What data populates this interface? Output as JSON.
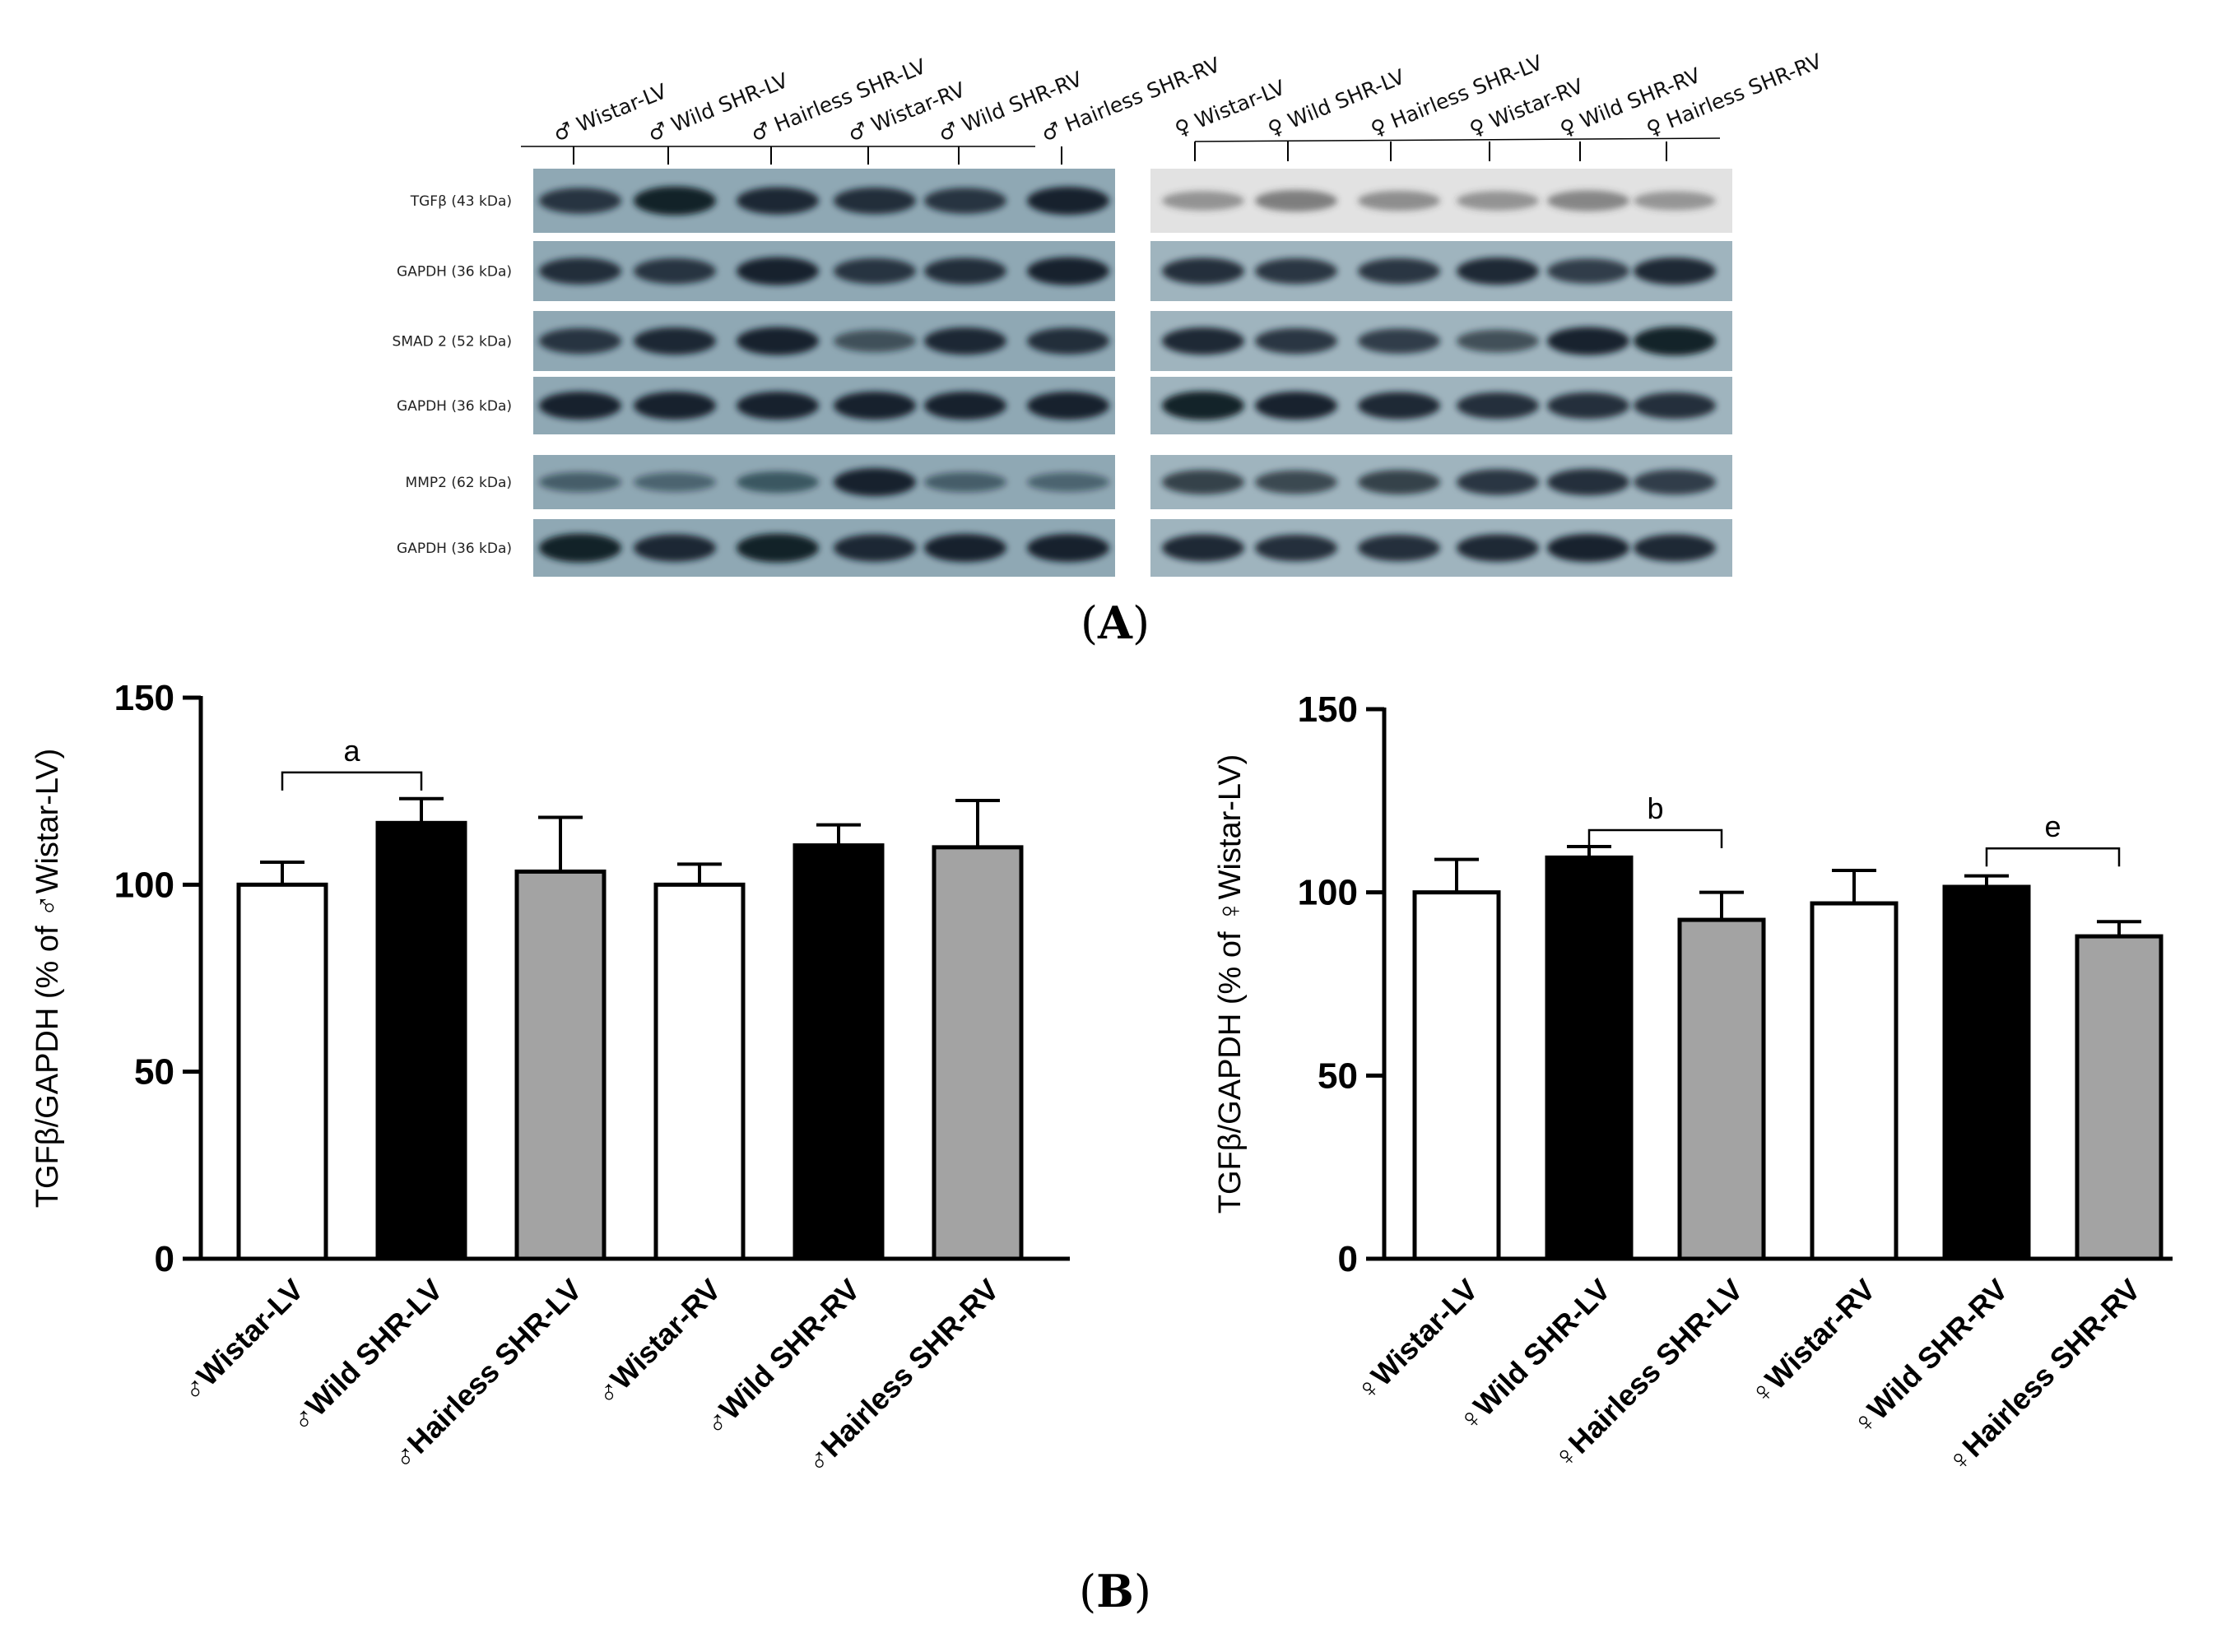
{
  "panel_a": {
    "panel_label": "A",
    "male_lanes": [
      "♂ Wistar-LV",
      "♂ Wild SHR-LV",
      "♂ Hairless SHR-LV",
      "♂ Wistar-RV",
      "♂ Wild SHR-RV",
      "♂ Hairless SHR-RV"
    ],
    "female_lanes": [
      "♀ Wistar-LV",
      "♀ Wild SHR-LV",
      "♀ Hairless SHR-LV",
      "♀ Wistar-RV",
      "♀ Wild SHR-RV",
      "♀ Hairless SHR-RV"
    ],
    "blots": [
      {
        "label": "TGFβ (43 kDa)",
        "male_intensity": [
          0.75,
          0.95,
          0.85,
          0.8,
          0.75,
          0.9
        ],
        "female_intensity": [
          0.3,
          0.45,
          0.35,
          0.3,
          0.4,
          0.28
        ]
      },
      {
        "label": "GAPDH (36 kDa)",
        "male_intensity": [
          0.8,
          0.75,
          0.9,
          0.75,
          0.8,
          0.9
        ],
        "female_intensity": [
          0.8,
          0.75,
          0.75,
          0.85,
          0.7,
          0.85
        ]
      },
      {
        "label": "SMAD 2 (52 kDa)",
        "male_intensity": [
          0.75,
          0.85,
          0.9,
          0.5,
          0.85,
          0.8
        ],
        "female_intensity": [
          0.85,
          0.75,
          0.7,
          0.55,
          0.9,
          0.95
        ]
      },
      {
        "label": "GAPDH (36 kDa)",
        "male_intensity": [
          0.9,
          0.9,
          0.9,
          0.9,
          0.9,
          0.9
        ],
        "female_intensity": [
          0.95,
          0.9,
          0.85,
          0.8,
          0.8,
          0.8
        ]
      },
      {
        "label": "MMP2 (62 kDa)",
        "male_intensity": [
          0.35,
          0.3,
          0.45,
          0.9,
          0.35,
          0.3
        ],
        "female_intensity": [
          0.65,
          0.6,
          0.65,
          0.75,
          0.8,
          0.7
        ]
      },
      {
        "label": "GAPDH (36 kDa)",
        "male_intensity": [
          0.95,
          0.85,
          0.95,
          0.85,
          0.9,
          0.9
        ],
        "female_intensity": [
          0.85,
          0.8,
          0.8,
          0.85,
          0.9,
          0.85
        ]
      }
    ]
  },
  "panel_b": {
    "panel_label": "B"
  },
  "chart_data": [
    {
      "type": "bar",
      "title": "",
      "xlabel": "",
      "ylabel": "TGFβ/GAPDH (% of ♂Wistar-LV)",
      "ylim": [
        0,
        150
      ],
      "yticks": [
        "0",
        "50",
        "100",
        "150"
      ],
      "categories": [
        "♂Wistar-LV",
        "♂Wild SHR-LV",
        "♂Hairless SHR-LV",
        "♂Wistar-RV",
        "♂Wild SHR-RV",
        "♂Hairless SHR-RV"
      ],
      "values": [
        100,
        116.5,
        103.5,
        100,
        110.5,
        110
      ],
      "errors": [
        6,
        6.5,
        14.5,
        5.5,
        5.5,
        12.5
      ],
      "fills": [
        "#ffffff",
        "#000000",
        "#a3a3a3",
        "#ffffff",
        "#000000",
        "#a3a3a3"
      ],
      "significance": [
        {
          "label": "a",
          "from": 0,
          "to": 1,
          "y": 130
        }
      ]
    },
    {
      "type": "bar",
      "title": "",
      "xlabel": "",
      "ylabel": "TGFβ/GAPDH (% of ♀Wistar-LV)",
      "ylim": [
        0,
        150
      ],
      "yticks": [
        "0",
        "50",
        "100",
        "150"
      ],
      "categories": [
        "♀Wistar-LV",
        "♀Wild SHR-LV",
        "♀Hairless SHR-LV",
        "♀Wistar-RV",
        "♀Wild SHR-RV",
        "♀Hairless SHR-RV"
      ],
      "values": [
        100,
        109.5,
        92.5,
        97,
        101.5,
        88
      ],
      "errors": [
        9,
        3,
        7.5,
        9,
        3,
        4
      ],
      "fills": [
        "#ffffff",
        "#000000",
        "#a3a3a3",
        "#ffffff",
        "#000000",
        "#a3a3a3"
      ],
      "significance": [
        {
          "label": "b",
          "from": 1,
          "to": 2,
          "y": 117
        },
        {
          "label": "e",
          "from": 4,
          "to": 5,
          "y": 112
        }
      ]
    }
  ]
}
